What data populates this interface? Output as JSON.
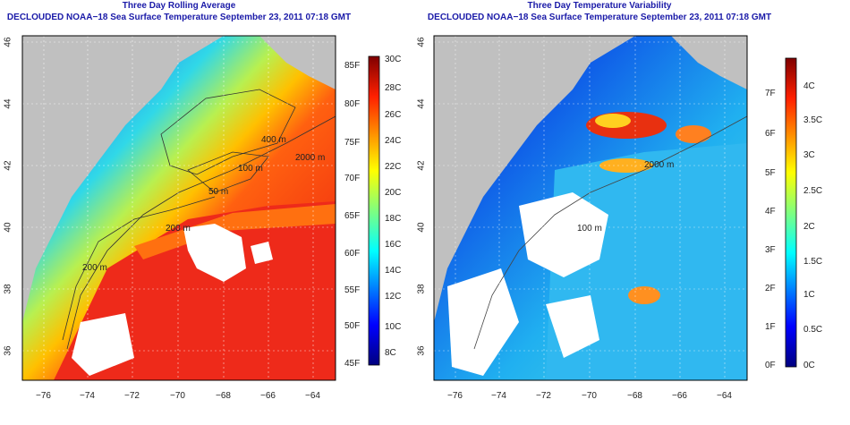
{
  "left_panel": {
    "title": "Three Day Rolling Average",
    "subtitle": "DECLOUDED NOAA−18 Sea Surface Temperature September 23, 2011 07:18 GMT",
    "contour_labels": [
      "400 m",
      "100 m",
      "2000 m",
      "200 m",
      "200 m",
      "50 m"
    ],
    "colorbar_f": [
      "85F",
      "80F",
      "75F",
      "70F",
      "65F",
      "60F",
      "55F",
      "50F",
      "45F"
    ],
    "colorbar_c": [
      "30C",
      "28C",
      "26C",
      "24C",
      "22C",
      "20C",
      "18C",
      "16C",
      "14C",
      "12C",
      "10C",
      "8C"
    ],
    "colors": [
      "#00007f",
      "#0000ff",
      "#007fff",
      "#00ffff",
      "#7fff7f",
      "#ffff00",
      "#ff7f00",
      "#ff0000",
      "#7f0000"
    ]
  },
  "right_panel": {
    "title": "Three Day Temperature Variability",
    "subtitle": "DECLOUDED NOAA−18 Sea Surface Temperature September 23, 2011 07:18 GMT",
    "contour_labels": [
      "2000 m",
      "100 m"
    ],
    "colorbar_f": [
      "7F",
      "6F",
      "5F",
      "4F",
      "3F",
      "2F",
      "1F",
      "0F"
    ],
    "colorbar_c": [
      "4C",
      "3.5C",
      "3C",
      "2.5C",
      "2C",
      "1.5C",
      "1C",
      "0.5C",
      "0C"
    ]
  },
  "axes": {
    "lon_ticks": [
      "−76",
      "−74",
      "−72",
      "−70",
      "−68",
      "−66",
      "−64"
    ],
    "lat_ticks": [
      "46",
      "44",
      "42",
      "40",
      "38",
      "36"
    ]
  }
}
